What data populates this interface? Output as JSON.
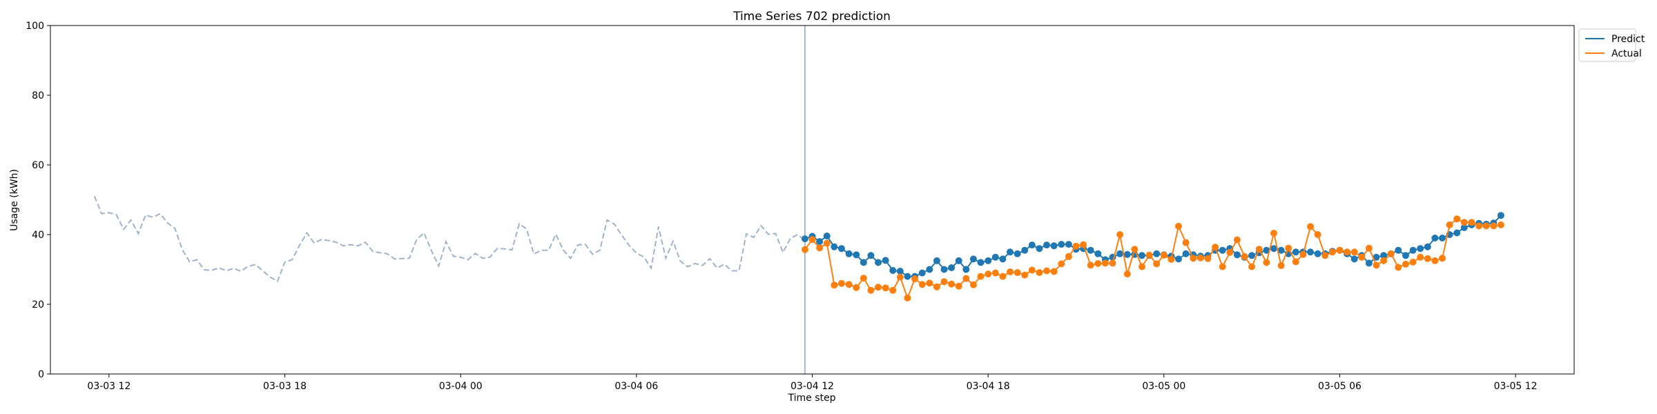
{
  "chart_data": {
    "type": "line",
    "title": "Time Series 702 prediction",
    "xlabel": "Time step",
    "ylabel": "Usage (kWh)",
    "ylim": [
      0,
      100
    ],
    "yticks": [
      0,
      20,
      40,
      60,
      80,
      100
    ],
    "xlim": [
      "2000-03-03 10:00",
      "2000-03-05 14:00"
    ],
    "xticks": [
      {
        "t": "2000-03-03 12:00",
        "label": "03-03 12"
      },
      {
        "t": "2000-03-03 18:00",
        "label": "03-03 18"
      },
      {
        "t": "2000-03-04 00:00",
        "label": "03-04 00"
      },
      {
        "t": "2000-03-04 06:00",
        "label": "03-04 06"
      },
      {
        "t": "2000-03-04 12:00",
        "label": "03-04 12"
      },
      {
        "t": "2000-03-04 18:00",
        "label": "03-04 18"
      },
      {
        "t": "2000-03-05 00:00",
        "label": "03-05 00"
      },
      {
        "t": "2000-03-05 06:00",
        "label": "03-05 06"
      },
      {
        "t": "2000-03-05 12:00",
        "label": "03-05 12"
      }
    ],
    "step_minutes": 15,
    "forecast_start": "2000-03-04 11:45",
    "grid": false,
    "legend_position": "outside-top-right",
    "colors": {
      "history": "#9fb3cc",
      "vline": "#8ea2cf",
      "predict": "#1f77b4",
      "actual": "#ff7f0e"
    },
    "legend": [
      {
        "name": "Predict",
        "color": "#1f77b4"
      },
      {
        "name": "Actual",
        "color": "#ff7f0e"
      }
    ],
    "history": {
      "start": "2000-03-03 11:30",
      "values": [
        51,
        46,
        46.3,
        45.7,
        41.5,
        44.2,
        40.3,
        45.6,
        45,
        46,
        43.3,
        41.8,
        35.7,
        32.2,
        32.8,
        29.9,
        29.7,
        30.5,
        29.6,
        30.3,
        29.5,
        30.9,
        31.4,
        29.6,
        27.8,
        26.6,
        32.1,
        32.8,
        36.9,
        40.5,
        37.6,
        38.6,
        38.3,
        37.8,
        36.8,
        37.1,
        36.8,
        37.8,
        35.2,
        34.8,
        34.5,
        33,
        33.1,
        33.2,
        38.6,
        40.5,
        35.4,
        31,
        38,
        33.8,
        33.5,
        32.8,
        34.6,
        33.2,
        33.5,
        36,
        35.9,
        35.6,
        43.1,
        41.6,
        34.4,
        35.5,
        35.5,
        40.1,
        35.6,
        33.2,
        37,
        37.2,
        34.4,
        35.5,
        44.2,
        43,
        39.8,
        36.9,
        34.7,
        33.6,
        30.4,
        42.3,
        33.2,
        38.1,
        32.4,
        30.8,
        31.7,
        31.1,
        33.1,
        30.4,
        31.5,
        29.6,
        29.6,
        40.2,
        39.2,
        42.6,
        40.1,
        40.3,
        34.9,
        38.9,
        40,
        38.3
      ]
    },
    "series": [
      {
        "name": "Predict",
        "values": [
          38.8,
          39.5,
          38,
          39.6,
          36.5,
          36,
          34.5,
          34.2,
          32,
          34,
          32,
          32.6,
          29.7,
          29.5,
          28,
          28,
          29,
          30,
          32.5,
          30,
          30.5,
          32.5,
          30,
          33,
          32,
          32.5,
          33.5,
          33,
          35,
          34.5,
          35.5,
          37,
          36,
          37,
          36.8,
          37.2,
          37.2,
          35.8,
          36,
          35.5,
          34.5,
          32.8,
          33.5,
          34.5,
          34.3,
          34.3,
          34,
          34,
          34.5,
          34.2,
          33.8,
          33,
          34.5,
          34.2,
          33.8,
          34,
          35.5,
          35.5,
          36,
          34.2,
          33.5,
          34,
          34.8,
          35.5,
          36,
          35.5,
          34.5,
          35,
          35,
          35,
          34.5,
          34.5,
          35.2,
          35.5,
          34.5,
          33,
          34,
          31.8,
          33.5,
          34,
          34.5,
          35.5,
          34,
          35.5,
          36,
          36.5,
          39,
          39,
          40,
          40.5,
          42,
          42.8,
          43.2,
          43,
          43.3,
          45.5
        ]
      },
      {
        "name": "Actual",
        "values": [
          35.7,
          38.6,
          36.2,
          37.5,
          25.5,
          26,
          25.7,
          24.8,
          27.5,
          24,
          24.9,
          24.7,
          24,
          27.8,
          21.8,
          27.3,
          25.7,
          26.1,
          25,
          26.5,
          25.8,
          25.2,
          27.4,
          25.6,
          28,
          28.7,
          29,
          28,
          29.3,
          29.1,
          28.4,
          29.8,
          29.1,
          29.6,
          29.4,
          31.6,
          33.7,
          36.7,
          37.1,
          31.2,
          31.7,
          31.8,
          31.8,
          40,
          28.7,
          35.8,
          30.8,
          34.1,
          31.6,
          34.1,
          32.9,
          42.4,
          37.7,
          33.2,
          33.3,
          33.1,
          36.4,
          30.8,
          34.9,
          38.5,
          33.7,
          30.8,
          35.8,
          32,
          40.4,
          31.1,
          36.1,
          32.2,
          34.3,
          42.3,
          40,
          34,
          35,
          35.5,
          35,
          35,
          33.5,
          36.1,
          31.2,
          32.5,
          34.5,
          30.6,
          31.5,
          32.1,
          33.5,
          33.1,
          32.5,
          33.2,
          42.8,
          44.5,
          43.5,
          43.5,
          42.5,
          42.5,
          42.5,
          42.8
        ]
      }
    ]
  }
}
